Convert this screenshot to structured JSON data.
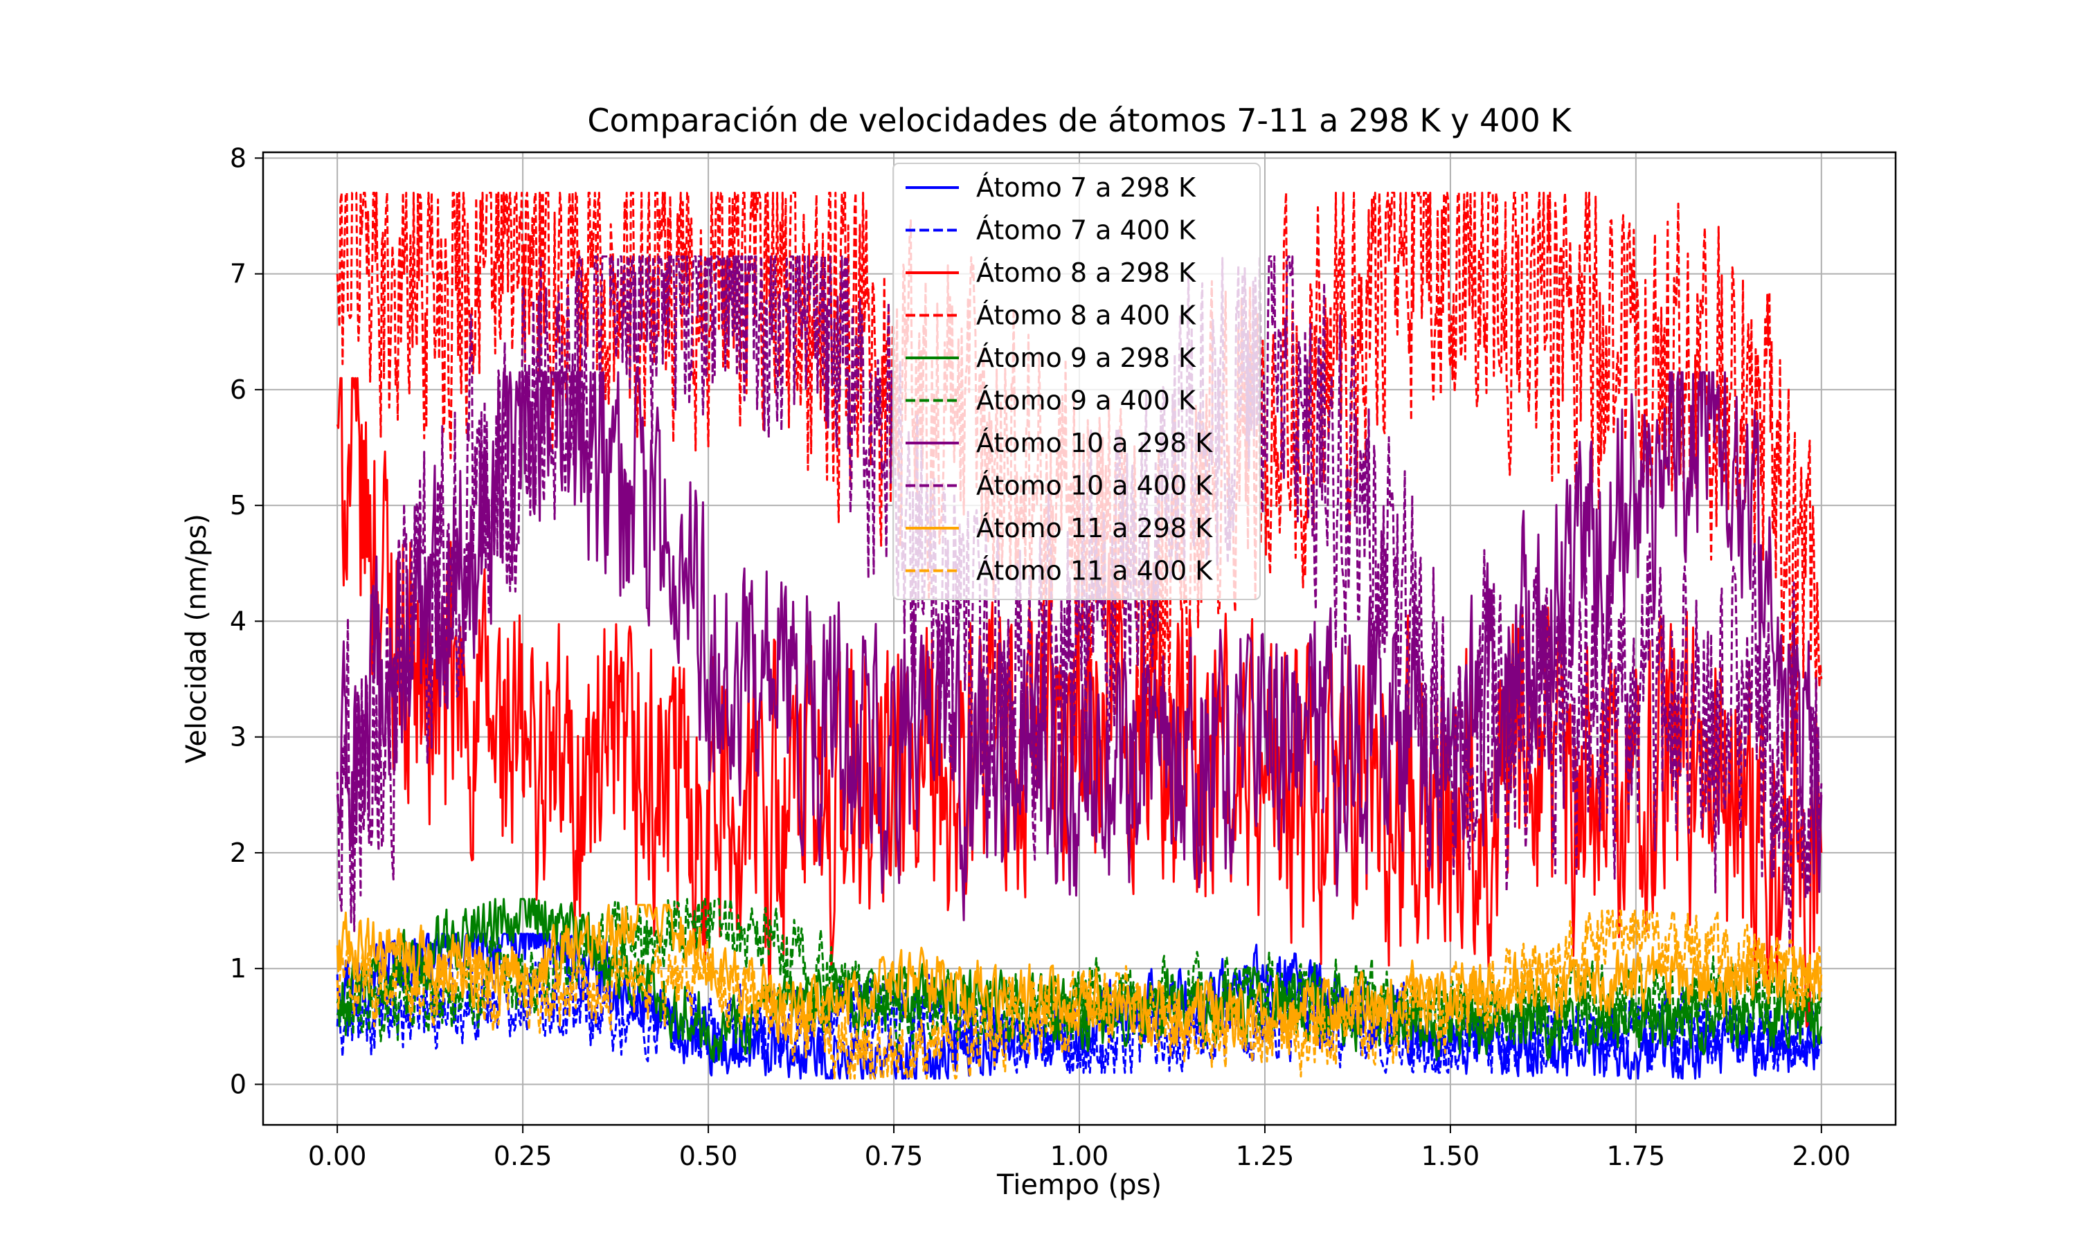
{
  "chart_data": {
    "type": "line",
    "title": "Comparación de velocidades de átomos 7-11 a 298 K y 400 K",
    "xlabel": "Tiempo (ps)",
    "ylabel": "Velocidad (nm/ps)",
    "xlim": [
      -0.1,
      2.1
    ],
    "ylim": [
      -0.35,
      8.05
    ],
    "xticks": [
      0.0,
      0.25,
      0.5,
      0.75,
      1.0,
      1.25,
      1.5,
      1.75,
      2.0
    ],
    "xtick_labels": [
      "0.00",
      "0.25",
      "0.50",
      "0.75",
      "1.00",
      "1.25",
      "1.50",
      "1.75",
      "2.00"
    ],
    "yticks": [
      0,
      1,
      2,
      3,
      4,
      5,
      6,
      7,
      8
    ],
    "ytick_labels": [
      "0",
      "1",
      "2",
      "3",
      "4",
      "5",
      "6",
      "7",
      "8"
    ],
    "grid": true,
    "legend_position": "top-center",
    "series": [
      {
        "name": "Átomo 7 a 298 K",
        "color": "#0000ff",
        "style": "solid",
        "mean": 0.6,
        "amplitude": 0.3,
        "min": 0.05,
        "max": 1.3,
        "keypoints": [
          [
            0.0,
            0.95
          ],
          [
            0.26,
            1.3
          ],
          [
            0.5,
            0.3
          ],
          [
            0.75,
            0.2
          ],
          [
            1.0,
            0.5
          ],
          [
            1.25,
            0.9
          ],
          [
            1.5,
            0.4
          ],
          [
            1.75,
            0.25
          ],
          [
            2.0,
            0.35
          ]
        ]
      },
      {
        "name": "Átomo 7 a 400 K",
        "color": "#0000ff",
        "style": "dashed",
        "mean": 0.6,
        "amplitude": 0.35,
        "min": 0.1,
        "max": 1.35,
        "keypoints": [
          [
            0.0,
            0.5
          ],
          [
            0.25,
            0.8
          ],
          [
            0.5,
            0.4
          ],
          [
            0.75,
            0.7
          ],
          [
            1.0,
            0.3
          ],
          [
            1.25,
            0.6
          ],
          [
            1.5,
            0.3
          ],
          [
            1.75,
            0.5
          ],
          [
            2.0,
            0.4
          ]
        ]
      },
      {
        "name": "Átomo 8 a 298 K",
        "color": "#ff0000",
        "style": "solid",
        "mean": 2.6,
        "amplitude": 1.4,
        "min": 0.4,
        "max": 6.1,
        "keypoints": [
          [
            0.0,
            5.7
          ],
          [
            0.1,
            3.5
          ],
          [
            0.3,
            2.6
          ],
          [
            0.6,
            2.4
          ],
          [
            0.8,
            2.5
          ],
          [
            1.05,
            3.2
          ],
          [
            1.3,
            2.4
          ],
          [
            1.6,
            2.6
          ],
          [
            1.85,
            2.7
          ],
          [
            2.0,
            2.0
          ]
        ]
      },
      {
        "name": "Átomo 8 a 400 K",
        "color": "#ff0000",
        "style": "dashed",
        "mean": 3.6,
        "amplitude": 1.6,
        "min": 0.7,
        "max": 7.7,
        "keypoints": [
          [
            0.0,
            7.0
          ],
          [
            0.02,
            7.7
          ],
          [
            0.09,
            7.0
          ],
          [
            0.2,
            7.15
          ],
          [
            0.55,
            7.05
          ],
          [
            1.1,
            4.5
          ],
          [
            1.43,
            7.2
          ],
          [
            1.73,
            6.25
          ],
          [
            1.9,
            6.2
          ],
          [
            2.0,
            3.5
          ]
        ]
      },
      {
        "name": "Átomo 9 a 298 K",
        "color": "#008000",
        "style": "solid",
        "mean": 0.65,
        "amplitude": 0.3,
        "min": 0.05,
        "max": 1.6,
        "keypoints": [
          [
            0.0,
            0.7
          ],
          [
            0.25,
            1.6
          ],
          [
            0.5,
            0.5
          ],
          [
            0.75,
            0.8
          ],
          [
            1.0,
            0.6
          ],
          [
            1.25,
            0.7
          ],
          [
            1.5,
            0.5
          ],
          [
            1.75,
            0.6
          ],
          [
            2.0,
            0.5
          ]
        ]
      },
      {
        "name": "Átomo 9 a 400 K",
        "color": "#008000",
        "style": "dashed",
        "mean": 0.7,
        "amplitude": 0.35,
        "min": 0.1,
        "max": 1.6,
        "keypoints": [
          [
            0.0,
            0.6
          ],
          [
            0.25,
            0.9
          ],
          [
            0.5,
            1.5
          ],
          [
            0.75,
            0.6
          ],
          [
            1.0,
            0.7
          ],
          [
            1.25,
            0.8
          ],
          [
            1.5,
            0.6
          ],
          [
            1.75,
            0.7
          ],
          [
            2.0,
            0.75
          ]
        ]
      },
      {
        "name": "Átomo 10 a 298 K",
        "color": "#800080",
        "style": "solid",
        "mean": 2.8,
        "amplitude": 1.2,
        "min": 0.3,
        "max": 6.15,
        "keypoints": [
          [
            0.0,
            2.5
          ],
          [
            0.28,
            6.15
          ],
          [
            0.55,
            3.4
          ],
          [
            0.8,
            2.8
          ],
          [
            1.0,
            2.6
          ],
          [
            1.25,
            3.0
          ],
          [
            1.5,
            2.9
          ],
          [
            1.86,
            6.0
          ],
          [
            2.0,
            2.5
          ]
        ]
      },
      {
        "name": "Átomo 10 a 400 K",
        "color": "#800080",
        "style": "dashed",
        "mean": 3.2,
        "amplitude": 1.5,
        "min": 0.4,
        "max": 7.15,
        "keypoints": [
          [
            0.0,
            2.7
          ],
          [
            0.36,
            7.15
          ],
          [
            0.5,
            7.05
          ],
          [
            0.65,
            6.55
          ],
          [
            0.9,
            3.2
          ],
          [
            1.26,
            6.55
          ],
          [
            1.5,
            3.0
          ],
          [
            1.75,
            3.5
          ],
          [
            2.0,
            2.6
          ]
        ]
      },
      {
        "name": "Átomo 11 a 298 K",
        "color": "#ffa500",
        "style": "solid",
        "mean": 0.75,
        "amplitude": 0.3,
        "min": 0.15,
        "max": 1.55,
        "keypoints": [
          [
            0.0,
            1.2
          ],
          [
            0.25,
            0.9
          ],
          [
            0.42,
            1.55
          ],
          [
            0.6,
            0.6
          ],
          [
            0.75,
            0.9
          ],
          [
            1.0,
            0.7
          ],
          [
            1.25,
            0.6
          ],
          [
            1.5,
            0.8
          ],
          [
            1.75,
            0.9
          ],
          [
            2.0,
            0.95
          ]
        ]
      },
      {
        "name": "Átomo 11 a 400 K",
        "color": "#ffa500",
        "style": "dashed",
        "mean": 0.7,
        "amplitude": 0.35,
        "min": 0.05,
        "max": 1.5,
        "keypoints": [
          [
            0.0,
            0.9
          ],
          [
            0.25,
            0.8
          ],
          [
            0.5,
            0.9
          ],
          [
            0.75,
            0.2
          ],
          [
            1.0,
            0.7
          ],
          [
            1.25,
            0.4
          ],
          [
            1.5,
            0.6
          ],
          [
            1.75,
            1.4
          ],
          [
            2.0,
            0.8
          ]
        ]
      }
    ]
  }
}
